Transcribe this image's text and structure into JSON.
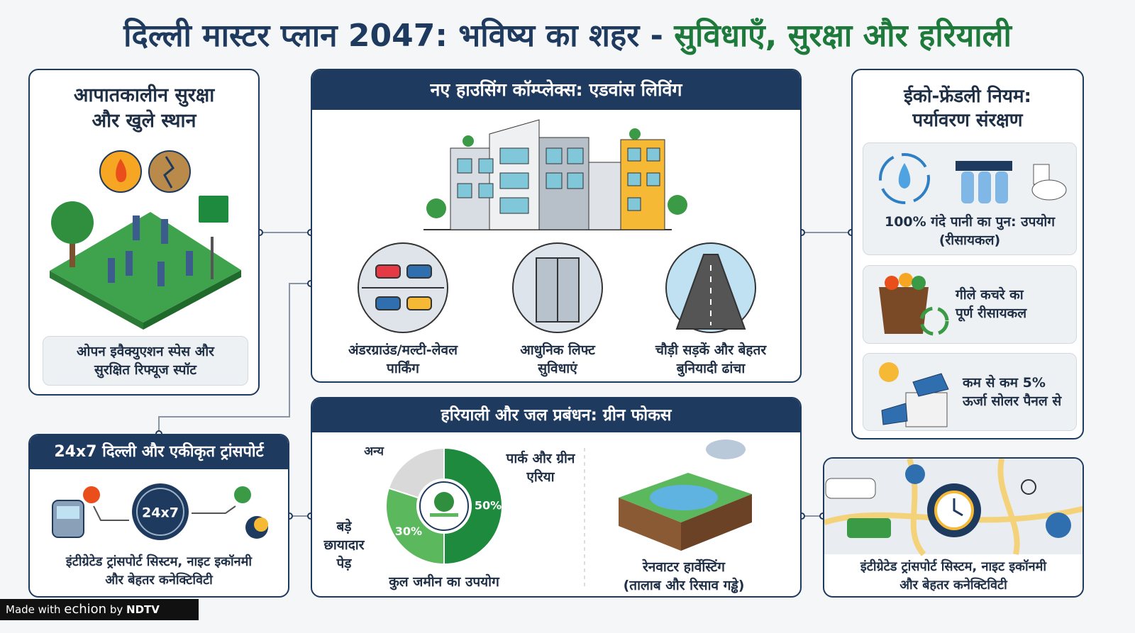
{
  "header": {
    "title_main": "दिल्ली मास्टर प्लान 2047: भविष्य का शहर -",
    "title_accent": "सुविधाएँ, सुरक्षा और हरियाली"
  },
  "emergency": {
    "title": [
      "आपातकालीन सुरक्षा",
      "और खुले स्थान"
    ],
    "caption": [
      "ओपन इवैक्युएशन स्पेस और",
      "सुरक्षित रिफ्यूज स्पॉट"
    ]
  },
  "housing": {
    "title": "नए हाउसिंग कॉम्प्लेक्स: एडवांस लिविंग",
    "items": [
      [
        "अंडरग्राउंड/मल्टी-लेवल",
        "पार्किंग"
      ],
      [
        "आधुनिक लिफ्ट",
        "सुविधाएं"
      ],
      [
        "चौड़ी सड़कें और बेहतर",
        "बुनियादी ढांचा"
      ]
    ]
  },
  "eco": {
    "title": [
      "ईको-फ्रेंडली नियम:",
      "पर्यावरण संरक्षण"
    ],
    "items": [
      [
        "100% गंदे पानी का पुन: उपयोग",
        "(रीसायकल)"
      ],
      [
        "गीले कचरे का",
        "पूर्ण रीसायकल"
      ],
      [
        "कम से कम 5%",
        "ऊर्जा सोलर पैनल से"
      ]
    ]
  },
  "transport": {
    "title": "24x7 दिल्ली और एकीकृत ट्रांसपोर्ट",
    "badge": "24x7",
    "caption": [
      "इंटीग्रेटेड ट्रांसपोर्ट सिस्टम, नाइट इकॉनमी",
      "और बेहतर कनेक्टिविटी"
    ]
  },
  "green": {
    "title": "हरियाली और जल प्रबंधन: ग्रीन फोकस",
    "rainwater": [
      "रेनवाटर हार्वेस्टिंग",
      "(तालाब और रिसाव गड्ढे)"
    ]
  },
  "chart_data": {
    "type": "pie",
    "title": "कुल जमीन का उपयोग",
    "categories": [
      "पार्क और ग्रीन एरिया",
      "बड़े छायादार पेड़",
      "अन्य"
    ],
    "values": [
      50,
      30,
      20
    ],
    "value_labels": [
      "50%",
      "30%",
      null
    ],
    "colors": [
      "#1e8a3e",
      "#5cb85c",
      "#d9d9d9"
    ]
  },
  "connectivity": {
    "caption": [
      "इंटीग्रेटेड ट्रांसपोर्ट सिस्टम, नाइट इकॉनमी",
      "और बेहतर कनेक्टिविटी"
    ]
  },
  "footer": {
    "made_with": "Made with",
    "brand": "echion",
    "by": "by",
    "ndtv": "NDTV"
  }
}
